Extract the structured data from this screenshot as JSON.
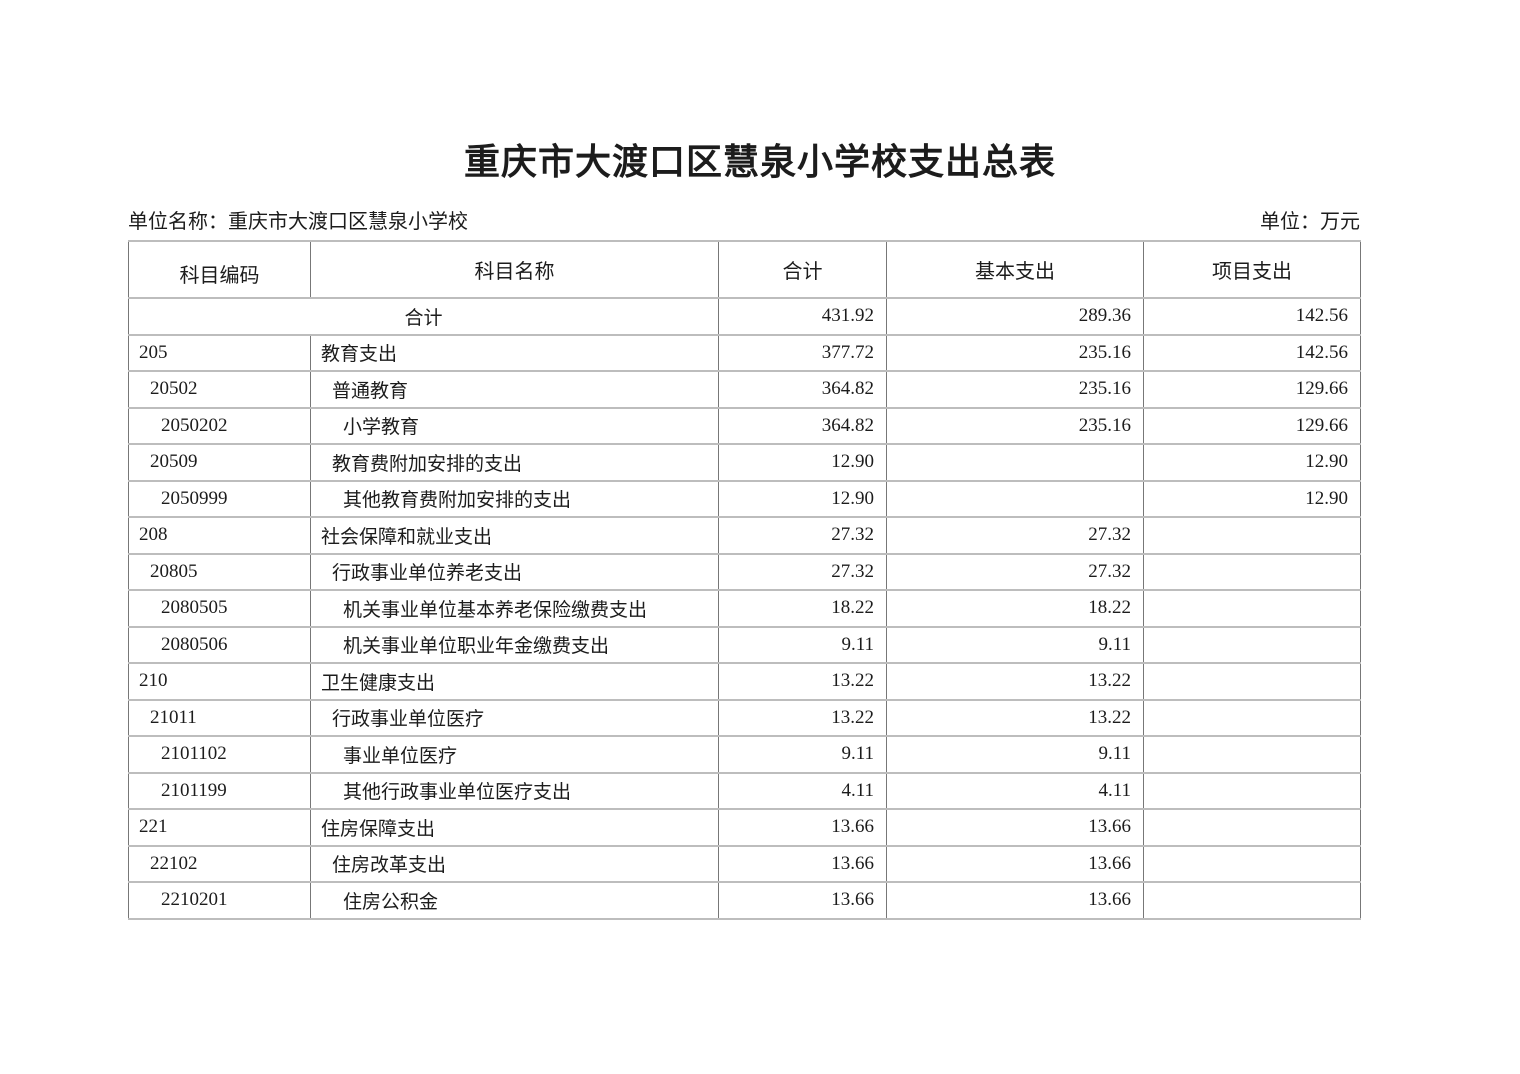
{
  "title": "重庆市大渡口区慧泉小学校支出总表",
  "meta": {
    "unit_name": "单位名称：重庆市大渡口区慧泉小学校",
    "unit_of_measure": "单位：万元"
  },
  "table": {
    "headers": [
      "科目编码",
      "科目名称",
      "合计",
      "基本支出",
      "项目支出"
    ],
    "total_row": {
      "name": "合计",
      "total": "431.92",
      "basic": "289.36",
      "project": "142.56"
    },
    "rows": [
      {
        "code": "205",
        "name": "教育支出",
        "level": 1,
        "total": "377.72",
        "basic": "235.16",
        "project": "142.56"
      },
      {
        "code": "20502",
        "name": "普通教育",
        "level": 2,
        "total": "364.82",
        "basic": "235.16",
        "project": "129.66"
      },
      {
        "code": "2050202",
        "name": "小学教育",
        "level": 3,
        "total": "364.82",
        "basic": "235.16",
        "project": "129.66"
      },
      {
        "code": "20509",
        "name": "教育费附加安排的支出",
        "level": 2,
        "total": "12.90",
        "basic": "",
        "project": "12.90"
      },
      {
        "code": "2050999",
        "name": "其他教育费附加安排的支出",
        "level": 3,
        "total": "12.90",
        "basic": "",
        "project": "12.90"
      },
      {
        "code": "208",
        "name": "社会保障和就业支出",
        "level": 1,
        "total": "27.32",
        "basic": "27.32",
        "project": ""
      },
      {
        "code": "20805",
        "name": "行政事业单位养老支出",
        "level": 2,
        "total": "27.32",
        "basic": "27.32",
        "project": ""
      },
      {
        "code": "2080505",
        "name": "机关事业单位基本养老保险缴费支出",
        "level": 3,
        "total": "18.22",
        "basic": "18.22",
        "project": ""
      },
      {
        "code": "2080506",
        "name": "机关事业单位职业年金缴费支出",
        "level": 3,
        "total": "9.11",
        "basic": "9.11",
        "project": ""
      },
      {
        "code": "210",
        "name": "卫生健康支出",
        "level": 1,
        "total": "13.22",
        "basic": "13.22",
        "project": ""
      },
      {
        "code": "21011",
        "name": "行政事业单位医疗",
        "level": 2,
        "total": "13.22",
        "basic": "13.22",
        "project": ""
      },
      {
        "code": "2101102",
        "name": "事业单位医疗",
        "level": 3,
        "total": "9.11",
        "basic": "9.11",
        "project": ""
      },
      {
        "code": "2101199",
        "name": "其他行政事业单位医疗支出",
        "level": 3,
        "total": "4.11",
        "basic": "4.11",
        "project": ""
      },
      {
        "code": "221",
        "name": "住房保障支出",
        "level": 1,
        "total": "13.66",
        "basic": "13.66",
        "project": ""
      },
      {
        "code": "22102",
        "name": "住房改革支出",
        "level": 2,
        "total": "13.66",
        "basic": "13.66",
        "project": ""
      },
      {
        "code": "2210201",
        "name": "住房公积金",
        "level": 3,
        "total": "13.66",
        "basic": "13.66",
        "project": ""
      }
    ]
  }
}
